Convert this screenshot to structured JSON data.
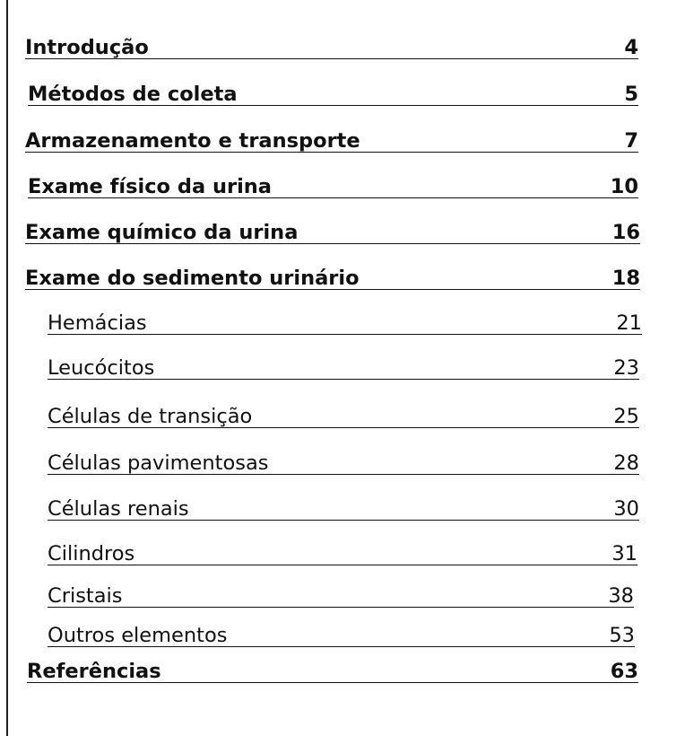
{
  "toc": {
    "entries": [
      {
        "title": "Introdução",
        "page": "4"
      },
      {
        "title": "Métodos de coleta",
        "page": "5"
      },
      {
        "title": "Armazenamento e transporte",
        "page": "7"
      },
      {
        "title": "Exame físico da urina",
        "page": "10"
      },
      {
        "title": "Exame químico da urina",
        "page": "16"
      },
      {
        "title": "Exame do sedimento urinário",
        "page": "18"
      },
      {
        "title": "Hemácias",
        "page": "21"
      },
      {
        "title": "Leucócitos",
        "page": "23"
      },
      {
        "title": "Células de transição",
        "page": "25"
      },
      {
        "title": "Células pavimentosas",
        "page": "28"
      },
      {
        "title": "Células renais",
        "page": "30"
      },
      {
        "title": "Cilindros",
        "page": "31"
      },
      {
        "title": "Cristais",
        "page": "38"
      },
      {
        "title": "Outros elementos",
        "page": "53"
      },
      {
        "title": "Referências",
        "page": "63"
      }
    ]
  }
}
